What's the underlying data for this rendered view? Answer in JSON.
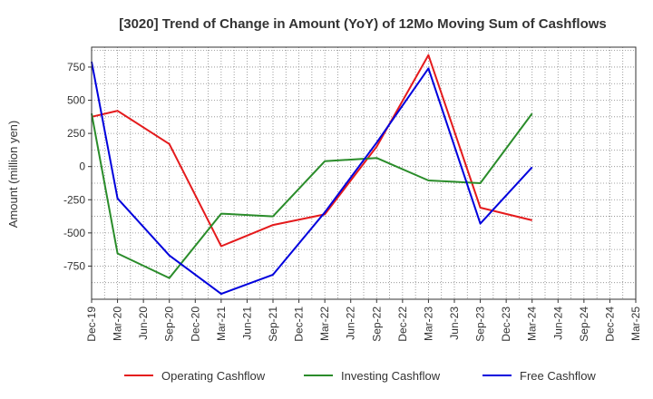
{
  "chart_data": {
    "type": "line",
    "title": "[3020]  Trend of Change in Amount (YoY) of 12Mo Moving Sum of Cashflows",
    "ylabel": "Amount (million yen)",
    "xlabel": "",
    "ylim": [
      -1000,
      900
    ],
    "yticks": [
      750,
      500,
      250,
      0,
      -250,
      -500,
      -750
    ],
    "ytick_labels": [
      "750",
      "500",
      "250",
      "0",
      "-250",
      "-500",
      "-750"
    ],
    "categories": [
      "Dec-19",
      "Mar-20",
      "Jun-20",
      "Sep-20",
      "Dec-20",
      "Mar-21",
      "Jun-21",
      "Sep-21",
      "Dec-21",
      "Mar-22",
      "Jun-22",
      "Sep-22",
      "Dec-22",
      "Mar-23",
      "Jun-23",
      "Sep-23",
      "Dec-23",
      "Mar-24",
      "Jun-24",
      "Sep-24",
      "Dec-24",
      "Mar-25"
    ],
    "grid": true,
    "legend_position": "bottom",
    "series": [
      {
        "name": "Operating Cashflow",
        "color": "#e41a1c",
        "values": [
          375,
          420,
          null,
          170,
          null,
          -600,
          null,
          -440,
          null,
          -360,
          null,
          150,
          null,
          840,
          null,
          -310,
          null,
          -405,
          null,
          null,
          null,
          null
        ]
      },
      {
        "name": "Investing Cashflow",
        "color": "#2a8c2a",
        "values": [
          400,
          -655,
          null,
          -840,
          null,
          -355,
          null,
          -375,
          null,
          40,
          null,
          65,
          null,
          -105,
          null,
          -125,
          null,
          400,
          null,
          null,
          null,
          null
        ]
      },
      {
        "name": "Free Cashflow",
        "color": "#0000dd",
        "values": [
          790,
          -240,
          null,
          -670,
          null,
          -960,
          null,
          -815,
          null,
          -345,
          null,
          180,
          null,
          740,
          null,
          -430,
          null,
          -5,
          null,
          null,
          null,
          null
        ]
      }
    ]
  }
}
